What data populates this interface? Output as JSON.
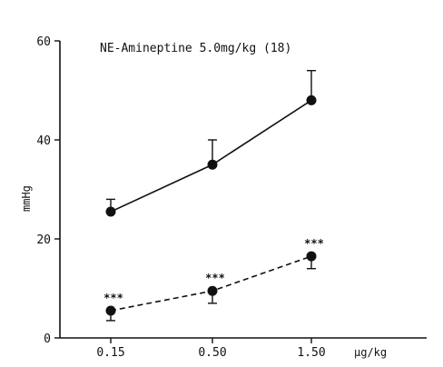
{
  "chart_data": {
    "type": "line",
    "title": "NE-Amineptine 5.0mg/kg (18)",
    "ylabel": "mmHg",
    "xunit": "µg/kg",
    "categories": [
      "0.15",
      "0.50",
      "1.50"
    ],
    "ylim": [
      0,
      60
    ],
    "yticks": [
      0,
      20,
      40,
      60
    ],
    "series": [
      {
        "style": "solid",
        "values": [
          25.5,
          35,
          48
        ],
        "error_upper": [
          28,
          40,
          54
        ]
      },
      {
        "style": "dashed",
        "values": [
          5.5,
          9.5,
          16.5
        ],
        "error_lower": [
          3.5,
          7,
          14
        ],
        "annotations": [
          "***",
          "***",
          "***"
        ]
      }
    ]
  }
}
